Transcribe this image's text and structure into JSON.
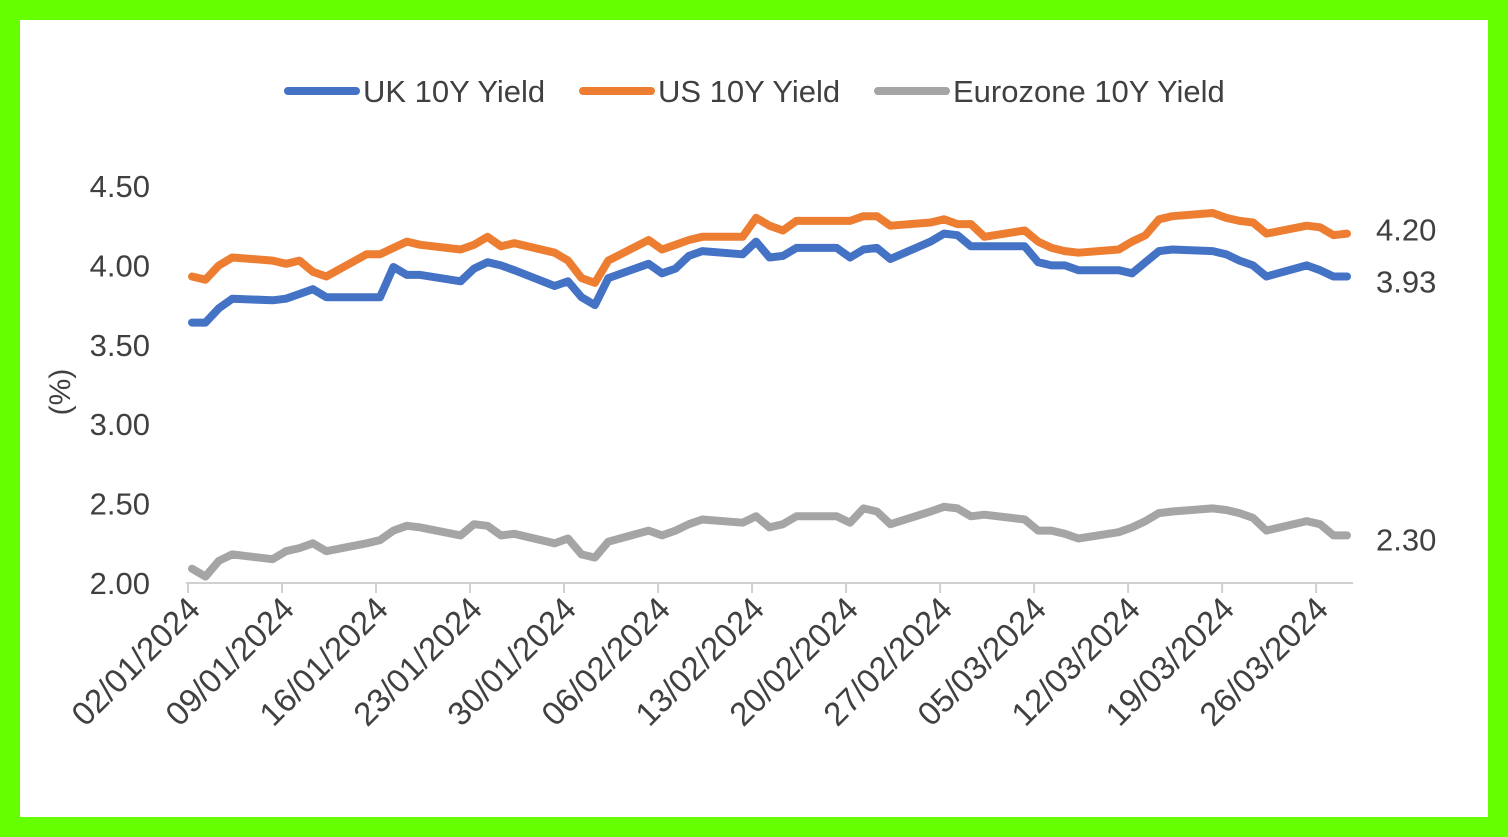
{
  "chart_data": {
    "type": "line",
    "title": "",
    "xlabel": "",
    "ylabel": "(%)",
    "ylim": [
      2.0,
      4.5
    ],
    "y_ticks": [
      "2.00",
      "2.50",
      "3.00",
      "3.50",
      "4.00",
      "4.50"
    ],
    "y_tick_values": [
      2.0,
      2.5,
      3.0,
      3.5,
      4.0,
      4.5
    ],
    "x_tick_labels": [
      "02/01/2024",
      "09/01/2024",
      "16/01/2024",
      "23/01/2024",
      "30/01/2024",
      "06/02/2024",
      "13/02/2024",
      "20/02/2024",
      "27/02/2024",
      "05/03/2024",
      "12/03/2024",
      "19/03/2024",
      "26/03/2024"
    ],
    "grid": false,
    "legend_position": "top",
    "x": [
      "02/01/2024",
      "03/01/2024",
      "04/01/2024",
      "05/01/2024",
      "08/01/2024",
      "09/01/2024",
      "10/01/2024",
      "11/01/2024",
      "12/01/2024",
      "15/01/2024",
      "16/01/2024",
      "17/01/2024",
      "18/01/2024",
      "19/01/2024",
      "22/01/2024",
      "23/01/2024",
      "24/01/2024",
      "25/01/2024",
      "26/01/2024",
      "29/01/2024",
      "30/01/2024",
      "31/01/2024",
      "01/02/2024",
      "02/02/2024",
      "05/02/2024",
      "06/02/2024",
      "07/02/2024",
      "08/02/2024",
      "09/02/2024",
      "12/02/2024",
      "13/02/2024",
      "14/02/2024",
      "15/02/2024",
      "16/02/2024",
      "19/02/2024",
      "20/02/2024",
      "21/02/2024",
      "22/02/2024",
      "23/02/2024",
      "26/02/2024",
      "27/02/2024",
      "28/02/2024",
      "29/02/2024",
      "01/03/2024",
      "04/03/2024",
      "05/03/2024",
      "06/03/2024",
      "07/03/2024",
      "08/03/2024",
      "11/03/2024",
      "12/03/2024",
      "13/03/2024",
      "14/03/2024",
      "15/03/2024",
      "18/03/2024",
      "19/03/2024",
      "20/03/2024",
      "21/03/2024",
      "22/03/2024",
      "25/03/2024",
      "26/03/2024",
      "27/03/2024",
      "28/03/2024"
    ],
    "series": [
      {
        "name": "UK 10Y Yield",
        "color": "#4472c4",
        "end_label": "3.93",
        "values": [
          3.64,
          3.64,
          3.73,
          3.79,
          3.78,
          3.79,
          3.82,
          3.85,
          3.8,
          3.8,
          3.8,
          3.99,
          3.94,
          3.94,
          3.9,
          3.98,
          4.02,
          4.0,
          3.97,
          3.87,
          3.9,
          3.8,
          3.75,
          3.92,
          4.01,
          3.95,
          3.98,
          4.06,
          4.09,
          4.07,
          4.15,
          4.05,
          4.06,
          4.11,
          4.11,
          4.05,
          4.1,
          4.11,
          4.04,
          4.15,
          4.2,
          4.19,
          4.12,
          4.12,
          4.12,
          4.02,
          4.0,
          4.0,
          3.97,
          3.97,
          3.95,
          4.02,
          4.09,
          4.1,
          4.09,
          4.07,
          4.03,
          4.0,
          3.93,
          4.0,
          3.97,
          3.93,
          3.93
        ]
      },
      {
        "name": "US 10Y Yield",
        "color": "#ed7d31",
        "end_label": "4.20",
        "values": [
          3.93,
          3.91,
          4.0,
          4.05,
          4.03,
          4.01,
          4.03,
          3.96,
          3.93,
          4.07,
          4.07,
          4.11,
          4.15,
          4.13,
          4.1,
          4.13,
          4.18,
          4.12,
          4.14,
          4.08,
          4.03,
          3.92,
          3.89,
          4.03,
          4.16,
          4.1,
          4.13,
          4.16,
          4.18,
          4.18,
          4.3,
          4.25,
          4.22,
          4.28,
          4.28,
          4.28,
          4.31,
          4.31,
          4.25,
          4.27,
          4.29,
          4.26,
          4.26,
          4.18,
          4.22,
          4.15,
          4.11,
          4.09,
          4.08,
          4.1,
          4.15,
          4.19,
          4.29,
          4.31,
          4.33,
          4.3,
          4.28,
          4.27,
          4.2,
          4.25,
          4.24,
          4.19,
          4.2
        ]
      },
      {
        "name": "Eurozone 10Y Yield",
        "color": "#a5a5a5",
        "end_label": "2.30",
        "values": [
          2.09,
          2.04,
          2.14,
          2.18,
          2.15,
          2.2,
          2.22,
          2.25,
          2.2,
          2.25,
          2.27,
          2.33,
          2.36,
          2.35,
          2.3,
          2.37,
          2.36,
          2.3,
          2.31,
          2.25,
          2.28,
          2.18,
          2.16,
          2.26,
          2.33,
          2.3,
          2.33,
          2.37,
          2.4,
          2.38,
          2.42,
          2.35,
          2.37,
          2.42,
          2.42,
          2.38,
          2.47,
          2.45,
          2.37,
          2.45,
          2.48,
          2.47,
          2.42,
          2.43,
          2.4,
          2.33,
          2.33,
          2.31,
          2.28,
          2.32,
          2.35,
          2.39,
          2.44,
          2.45,
          2.47,
          2.46,
          2.44,
          2.41,
          2.33,
          2.39,
          2.37,
          2.3,
          2.3
        ]
      }
    ]
  },
  "colors": {
    "border": "#66ff00",
    "axis": "#d0d0d0",
    "text": "#404040"
  }
}
